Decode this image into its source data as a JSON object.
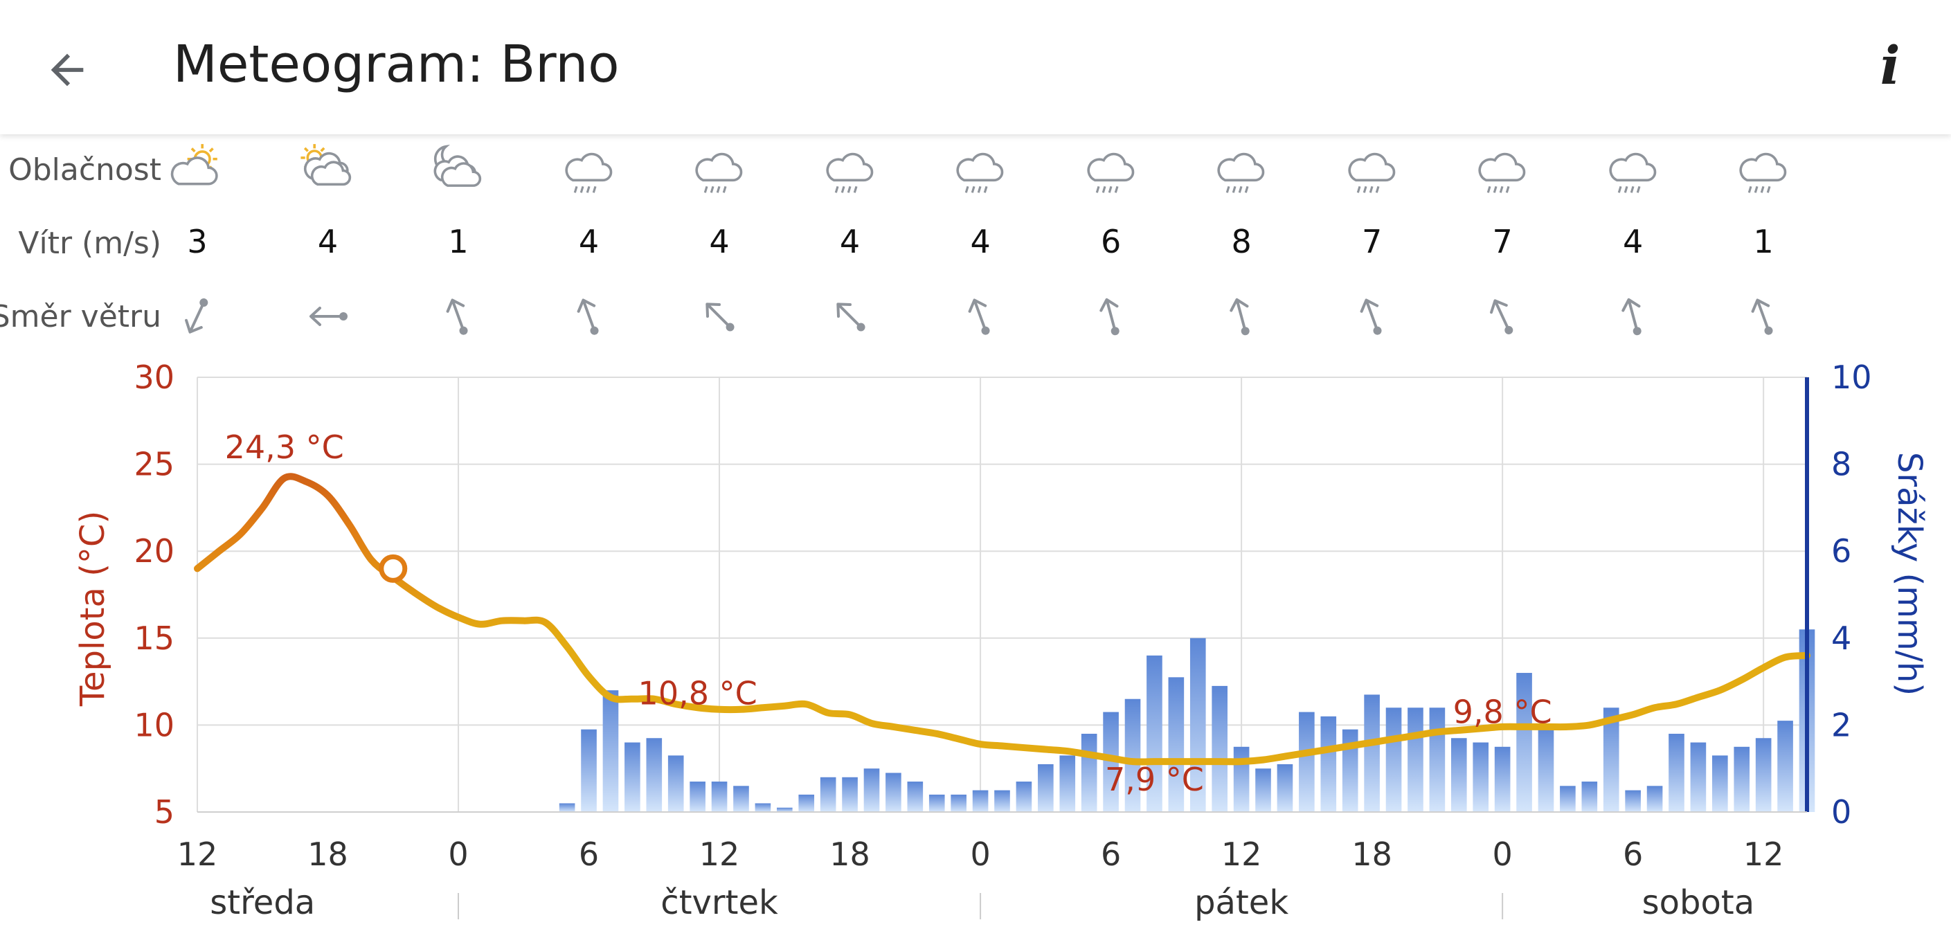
{
  "header": {
    "title": "Meteogram: Brno",
    "back_icon": "arrow-left-icon",
    "info_icon": "info-icon",
    "info_label": "i"
  },
  "rows": {
    "cloudiness_label": "Oblačnost",
    "wind_label": "Vítr (m/s)",
    "direction_label": "Směr větru"
  },
  "forecast": [
    {
      "hour": "12",
      "cloud": "sun-cloud-icon",
      "wind": "3",
      "dir_deg": 25
    },
    {
      "hour": "18",
      "cloud": "sun-clouds-icon",
      "wind": "4",
      "dir_deg": 90
    },
    {
      "hour": "0",
      "cloud": "moon-clouds-icon",
      "wind": "1",
      "dir_deg": 160
    },
    {
      "hour": "6",
      "cloud": "cloud-rain-icon",
      "wind": "4",
      "dir_deg": 160
    },
    {
      "hour": "12",
      "cloud": "cloud-rain-icon",
      "wind": "4",
      "dir_deg": 135
    },
    {
      "hour": "18",
      "cloud": "cloud-rain-icon",
      "wind": "4",
      "dir_deg": 135
    },
    {
      "hour": "0",
      "cloud": "cloud-rain-icon",
      "wind": "4",
      "dir_deg": 160
    },
    {
      "hour": "6",
      "cloud": "cloud-rain-icon",
      "wind": "6",
      "dir_deg": 165
    },
    {
      "hour": "12",
      "cloud": "cloud-rain-icon",
      "wind": "8",
      "dir_deg": 165
    },
    {
      "hour": "18",
      "cloud": "cloud-rain-icon",
      "wind": "7",
      "dir_deg": 160
    },
    {
      "hour": "0",
      "cloud": "cloud-rain-icon",
      "wind": "7",
      "dir_deg": 155
    },
    {
      "hour": "6",
      "cloud": "cloud-rain-icon",
      "wind": "4",
      "dir_deg": 165
    },
    {
      "hour": "12",
      "cloud": "cloud-rain-icon",
      "wind": "1",
      "dir_deg": 160
    }
  ],
  "days": [
    "středa",
    "čtvrtek",
    "pátek",
    "sobota"
  ],
  "colors": {
    "temp_axis": "#b7321c",
    "precip_axis": "#1a3a9c",
    "temp_line": "#e3ab12",
    "temp_line_warm": "#e07d14",
    "bar_top": "#5b86d6",
    "bar_bottom": "#d5e6fb",
    "grid": "#dddddd",
    "icon_grey": "#8f949b"
  },
  "chart_data": {
    "type": "line+bar",
    "ylabel_left": "Teplota (°C)",
    "ylabel_right": "Srážky (mm/h)",
    "ylim_left": [
      5,
      30
    ],
    "ylim_right": [
      0,
      10
    ],
    "yticks_left": [
      "30",
      "25",
      "20",
      "15",
      "10",
      "5"
    ],
    "yticks_right": [
      "10",
      "8",
      "6",
      "4",
      "2",
      "0"
    ],
    "x_unit": "hours since Wednesday 12:00",
    "xticks": [
      {
        "h": 0,
        "label": "12"
      },
      {
        "h": 6,
        "label": "18"
      },
      {
        "h": 12,
        "label": "0"
      },
      {
        "h": 18,
        "label": "6"
      },
      {
        "h": 24,
        "label": "12"
      },
      {
        "h": 30,
        "label": "18"
      },
      {
        "h": 36,
        "label": "0"
      },
      {
        "h": 42,
        "label": "6"
      },
      {
        "h": 48,
        "label": "12"
      },
      {
        "h": 54,
        "label": "18"
      },
      {
        "h": 60,
        "label": "0"
      },
      {
        "h": 66,
        "label": "6"
      },
      {
        "h": 72,
        "label": "12"
      }
    ],
    "day_labels": [
      {
        "h": 3,
        "label": "středa"
      },
      {
        "h": 24,
        "label": "čtvrtek"
      },
      {
        "h": 48,
        "label": "pátek"
      },
      {
        "h": 69,
        "label": "sobota"
      }
    ],
    "day_separators_h": [
      12,
      36,
      60
    ],
    "temperature": {
      "name": "Teplota",
      "x": [
        0,
        1,
        2,
        3,
        4,
        5,
        6,
        7,
        8,
        9,
        10,
        11,
        12,
        13,
        14,
        15,
        16,
        17,
        18,
        19,
        20,
        21,
        22,
        23,
        24,
        25,
        26,
        27,
        28,
        29,
        30,
        31,
        32,
        33,
        34,
        35,
        36,
        37,
        38,
        39,
        40,
        41,
        42,
        43,
        44,
        45,
        46,
        47,
        48,
        49,
        50,
        51,
        52,
        53,
        54,
        55,
        56,
        57,
        58,
        59,
        60,
        61,
        62,
        63,
        64,
        65,
        66,
        67,
        68,
        69,
        70,
        71,
        72,
        73,
        74
      ],
      "y": [
        19.0,
        20.0,
        21.0,
        22.5,
        24.2,
        24.0,
        23.2,
        21.5,
        19.5,
        18.5,
        17.6,
        16.8,
        16.2,
        15.8,
        16.0,
        16.0,
        15.9,
        14.5,
        12.8,
        11.6,
        11.5,
        11.5,
        11.2,
        11.0,
        10.9,
        10.9,
        11.0,
        11.1,
        11.2,
        10.7,
        10.6,
        10.1,
        9.9,
        9.7,
        9.5,
        9.2,
        8.9,
        8.8,
        8.7,
        8.6,
        8.5,
        8.3,
        8.1,
        7.9,
        7.9,
        7.9,
        7.9,
        7.9,
        7.9,
        8.0,
        8.2,
        8.4,
        8.6,
        8.8,
        9.0,
        9.2,
        9.4,
        9.6,
        9.7,
        9.8,
        9.9,
        9.9,
        9.9,
        9.9,
        10.0,
        10.3,
        10.6,
        11.0,
        11.2,
        11.6,
        12.0,
        12.6,
        13.3,
        13.9,
        14.0
      ]
    },
    "marker": {
      "x": 9,
      "y": 19.0
    },
    "annotations": [
      {
        "x": 4,
        "y": 24.3,
        "text": "24,3 °C"
      },
      {
        "x": 23,
        "y": 10.8,
        "text": "10,8 °C"
      },
      {
        "x": 44,
        "y": 7.9,
        "text": "7,9 °C"
      },
      {
        "x": 60,
        "y": 9.8,
        "text": "9,8 °C"
      }
    ],
    "precipitation": {
      "name": "Srážky",
      "x": [
        17,
        18,
        19,
        20,
        21,
        22,
        23,
        24,
        25,
        26,
        27,
        28,
        29,
        30,
        31,
        32,
        33,
        34,
        35,
        36,
        37,
        38,
        39,
        40,
        41,
        42,
        43,
        44,
        45,
        46,
        47,
        48,
        49,
        50,
        51,
        52,
        53,
        54,
        55,
        56,
        57,
        58,
        59,
        60,
        61,
        62,
        63,
        64,
        65,
        66,
        67,
        68,
        69,
        70,
        71,
        72,
        73,
        74
      ],
      "values": [
        0.2,
        1.9,
        2.8,
        1.6,
        1.7,
        1.3,
        0.7,
        0.7,
        0.6,
        0.2,
        0.1,
        0.4,
        0.8,
        0.8,
        1.0,
        0.9,
        0.7,
        0.4,
        0.4,
        0.5,
        0.5,
        0.7,
        1.1,
        1.3,
        1.8,
        2.3,
        2.6,
        3.6,
        3.1,
        4.0,
        2.9,
        1.5,
        1.0,
        1.1,
        2.3,
        2.2,
        1.9,
        2.7,
        2.4,
        2.4,
        2.4,
        1.7,
        1.6,
        1.5,
        3.2,
        2.0,
        0.6,
        0.7,
        2.4,
        0.5,
        0.6,
        1.8,
        1.6,
        1.3,
        1.5,
        1.7,
        2.1,
        4.2
      ]
    },
    "grid": true
  }
}
